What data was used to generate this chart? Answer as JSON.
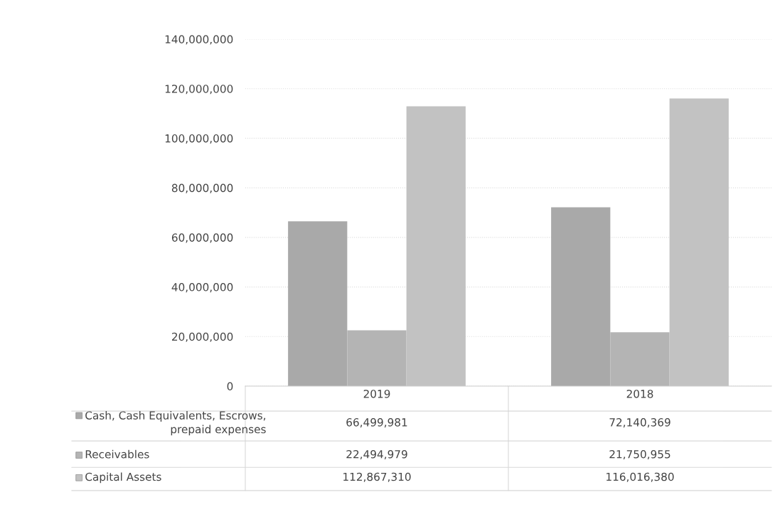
{
  "chart_data": {
    "type": "bar",
    "categories": [
      "2019",
      "2018"
    ],
    "series": [
      {
        "name": "Cash, Cash Equivalents, Escrows, prepaid expenses",
        "color": "#a9a9a9",
        "values": [
          66499981,
          72140369
        ],
        "value_labels": [
          "66,499,981",
          "72,140,369"
        ]
      },
      {
        "name": "Receivables",
        "color": "#b4b4b4",
        "values": [
          22494979,
          21750955
        ],
        "value_labels": [
          "22,494,979",
          "21,750,955"
        ]
      },
      {
        "name": "Capital Assets",
        "color": "#c2c2c2",
        "values": [
          112867310,
          116016380
        ],
        "value_labels": [
          "112,867,310",
          "116,016,380"
        ]
      }
    ],
    "ylim": [
      0,
      140000000
    ],
    "yticks": [
      {
        "value": 0,
        "label": "0"
      },
      {
        "value": 20000000,
        "label": "20,000,000"
      },
      {
        "value": 40000000,
        "label": "40,000,000"
      },
      {
        "value": 60000000,
        "label": "60,000,000"
      },
      {
        "value": 80000000,
        "label": "80,000,000"
      },
      {
        "value": 100000000,
        "label": "100,000,000"
      },
      {
        "value": 120000000,
        "label": "120,000,000"
      },
      {
        "value": 140000000,
        "label": "140,000,000"
      }
    ],
    "grid": "y",
    "legend": "bottom"
  }
}
